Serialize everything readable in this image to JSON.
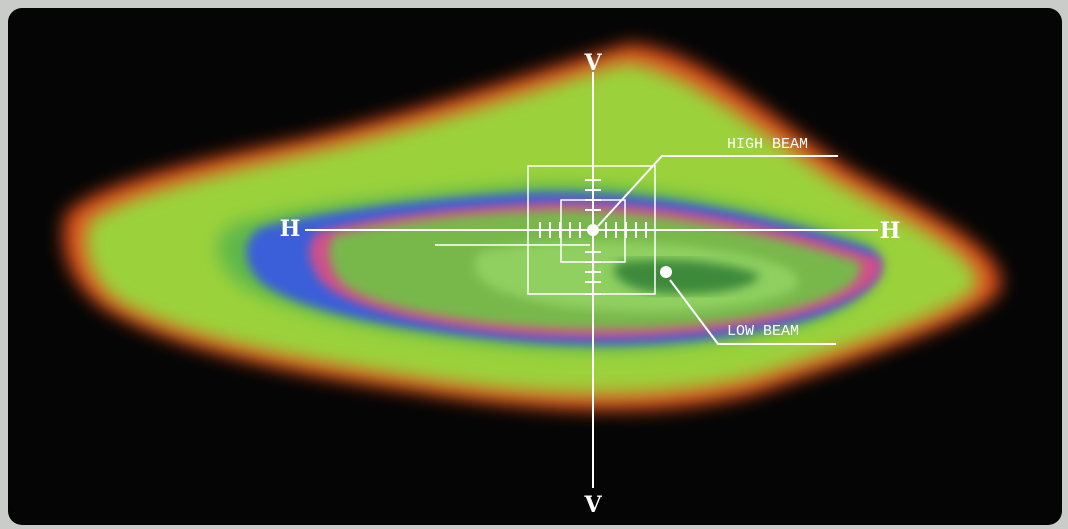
{
  "axes": {
    "v_top": "V",
    "v_bottom": "V",
    "h_left": "H",
    "h_right": "H"
  },
  "callouts": {
    "high_beam": "HIGH BEAM",
    "low_beam": "LOW BEAM"
  }
}
